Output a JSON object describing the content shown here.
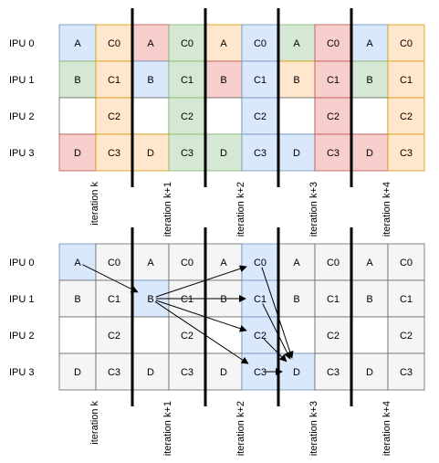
{
  "colors": {
    "blue": "#dae8fc",
    "blue_border": "#6c8ebf",
    "orange": "#ffe6cc",
    "orange_border": "#d79b00",
    "green": "#d5e8d4",
    "green_border": "#82b366",
    "red": "#f8cecc",
    "red_border": "#b85450",
    "gray": "#f5f5f5",
    "gray_border": "#666666",
    "white": "#ffffff",
    "text_gray": "#333333"
  },
  "row_labels": [
    "IPU 0",
    "IPU 1",
    "IPU 2",
    "IPU 3"
  ],
  "iteration_labels": [
    "iteration k",
    "iteration k+1",
    "iteration k+2",
    "iteration k+3",
    "iteration k+4"
  ],
  "top_grid": [
    [
      [
        "A",
        "blue"
      ],
      [
        "C0",
        "orange"
      ],
      [
        "A",
        "red"
      ],
      [
        "C0",
        "green"
      ],
      [
        "A",
        "orange"
      ],
      [
        "C0",
        "blue"
      ],
      [
        "A",
        "green"
      ],
      [
        "C0",
        "red"
      ],
      [
        "A",
        "blue"
      ],
      [
        "C0",
        "orange"
      ]
    ],
    [
      [
        "B",
        "green"
      ],
      [
        "C1",
        "orange"
      ],
      [
        "B",
        "blue"
      ],
      [
        "C1",
        "green"
      ],
      [
        "B",
        "red"
      ],
      [
        "C1",
        "blue"
      ],
      [
        "B",
        "orange"
      ],
      [
        "C1",
        "red"
      ],
      [
        "B",
        "green"
      ],
      [
        "C1",
        "orange"
      ]
    ],
    [
      [
        "",
        "white"
      ],
      [
        "C2",
        "orange"
      ],
      [
        "",
        "white"
      ],
      [
        "C2",
        "green"
      ],
      [
        "",
        "white"
      ],
      [
        "C2",
        "blue"
      ],
      [
        "",
        "white"
      ],
      [
        "C2",
        "red"
      ],
      [
        "",
        "white"
      ],
      [
        "C2",
        "orange"
      ]
    ],
    [
      [
        "D",
        "red"
      ],
      [
        "C3",
        "orange"
      ],
      [
        "D",
        "orange"
      ],
      [
        "C3",
        "green"
      ],
      [
        "D",
        "green"
      ],
      [
        "C3",
        "blue"
      ],
      [
        "D",
        "blue"
      ],
      [
        "C3",
        "red"
      ],
      [
        "D",
        "red"
      ],
      [
        "C3",
        "orange"
      ]
    ]
  ],
  "bottom_grid": [
    [
      [
        "A",
        "blue"
      ],
      [
        "C0",
        "gray"
      ],
      [
        "A",
        "gray"
      ],
      [
        "C0",
        "gray"
      ],
      [
        "A",
        "gray"
      ],
      [
        "C0",
        "blue"
      ],
      [
        "A",
        "gray"
      ],
      [
        "C0",
        "gray"
      ],
      [
        "A",
        "gray"
      ],
      [
        "C0",
        "gray"
      ]
    ],
    [
      [
        "B",
        "gray"
      ],
      [
        "C1",
        "gray"
      ],
      [
        "B",
        "blue"
      ],
      [
        "C1",
        "gray"
      ],
      [
        "B",
        "gray"
      ],
      [
        "C1",
        "blue"
      ],
      [
        "B",
        "gray"
      ],
      [
        "C1",
        "gray"
      ],
      [
        "B",
        "gray"
      ],
      [
        "C1",
        "gray"
      ]
    ],
    [
      [
        "",
        "white"
      ],
      [
        "C2",
        "gray"
      ],
      [
        "",
        "white"
      ],
      [
        "C2",
        "gray"
      ],
      [
        "",
        "white"
      ],
      [
        "C2",
        "blue"
      ],
      [
        "",
        "white"
      ],
      [
        "C2",
        "gray"
      ],
      [
        "",
        "white"
      ],
      [
        "C2",
        "gray"
      ]
    ],
    [
      [
        "D",
        "gray"
      ],
      [
        "C3",
        "gray"
      ],
      [
        "D",
        "gray"
      ],
      [
        "C3",
        "gray"
      ],
      [
        "D",
        "gray"
      ],
      [
        "C3",
        "blue"
      ],
      [
        "D",
        "blue"
      ],
      [
        "C3",
        "gray"
      ],
      [
        "D",
        "gray"
      ],
      [
        "C3",
        "gray"
      ]
    ]
  ],
  "arrows": [
    {
      "from": [
        0,
        0
      ],
      "to": [
        1,
        2
      ]
    },
    {
      "from": [
        1,
        2
      ],
      "to": [
        0,
        5
      ]
    },
    {
      "from": [
        1,
        2
      ],
      "to": [
        1,
        5
      ]
    },
    {
      "from": [
        1,
        2
      ],
      "to": [
        2,
        5
      ]
    },
    {
      "from": [
        1,
        2
      ],
      "to": [
        3,
        5
      ]
    },
    {
      "from": [
        0,
        5
      ],
      "to": [
        3,
        6
      ]
    },
    {
      "from": [
        1,
        5
      ],
      "to": [
        3,
        6
      ]
    },
    {
      "from": [
        2,
        5
      ],
      "to": [
        3,
        6
      ]
    },
    {
      "from": [
        3,
        5
      ],
      "to": [
        3,
        6
      ]
    }
  ]
}
